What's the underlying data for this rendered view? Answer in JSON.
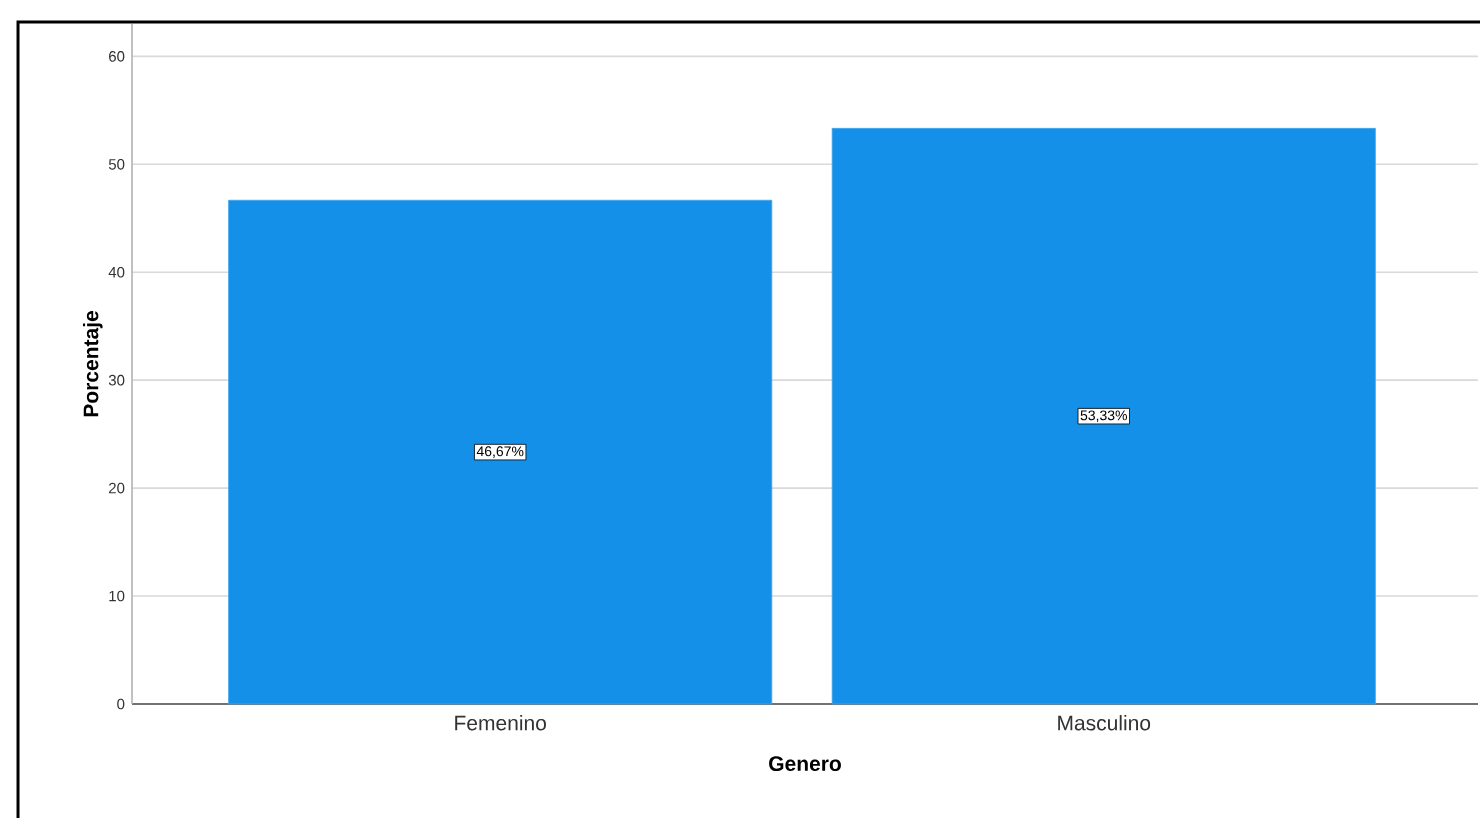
{
  "chart_data": {
    "type": "bar",
    "xlabel": "Genero",
    "ylabel": "Porcentaje",
    "categories": [
      "Femenino",
      "Masculino"
    ],
    "values": [
      46.67,
      53.33
    ],
    "value_labels": [
      "46,67%",
      "53,33%"
    ],
    "color": "#1490e8",
    "ylim": [
      0,
      63
    ],
    "yticks": [
      0,
      10,
      20,
      30,
      40,
      50,
      60
    ],
    "grid": "y"
  }
}
